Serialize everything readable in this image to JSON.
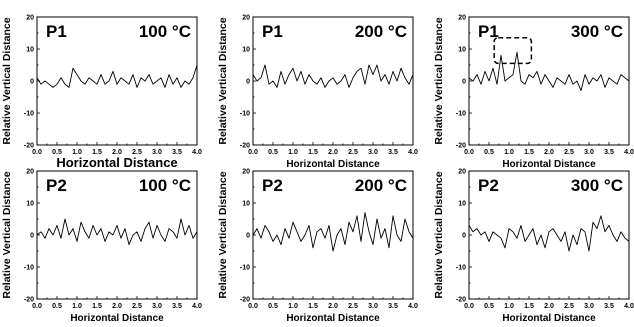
{
  "chart_data": [
    {
      "type": "line",
      "label": "P1",
      "temperature": "100 °C",
      "xlabel": "Horizontal Distance",
      "ylabel": "Relative Vertical Distance",
      "xlim": [
        0.0,
        4.0
      ],
      "ylim": [
        -20,
        20
      ],
      "xticks": [
        "0.0",
        "0.5",
        "1.0",
        "1.5",
        "2.0",
        "2.5",
        "3.0",
        "3.5",
        "4.0"
      ],
      "yticks": [
        "20",
        "10",
        "0",
        "-10",
        "-20"
      ],
      "x": [
        0.0,
        0.1,
        0.2,
        0.3,
        0.4,
        0.5,
        0.6,
        0.7,
        0.8,
        0.9,
        1.0,
        1.1,
        1.2,
        1.3,
        1.4,
        1.5,
        1.6,
        1.7,
        1.8,
        1.9,
        2.0,
        2.1,
        2.2,
        2.3,
        2.4,
        2.5,
        2.6,
        2.7,
        2.8,
        2.9,
        3.0,
        3.1,
        3.2,
        3.3,
        3.4,
        3.5,
        3.6,
        3.7,
        3.8,
        3.9,
        4.0
      ],
      "y": [
        1,
        -1,
        0,
        -1,
        -2,
        -1,
        1,
        -1,
        -2,
        4,
        2,
        0,
        -1,
        1,
        0,
        -1,
        2,
        -1,
        0,
        3,
        -1,
        1,
        0,
        -1,
        2,
        -2,
        1,
        0,
        2,
        -1,
        0,
        1,
        -2,
        2,
        -1,
        1,
        -2,
        0,
        -1,
        1,
        5
      ]
    },
    {
      "type": "line",
      "label": "P1",
      "temperature": "200 °C",
      "xlabel": "Horizontal Distance",
      "ylabel": "Relative Vertical Distance",
      "xlim": [
        0.0,
        4.0
      ],
      "ylim": [
        -20,
        20
      ],
      "xticks": [
        "0.0",
        "0.5",
        "1.0",
        "1.5",
        "2.0",
        "2.5",
        "3.0",
        "3.5",
        "4.0"
      ],
      "yticks": [
        "20",
        "10",
        "0",
        "-10",
        "-20"
      ],
      "x": [
        0.0,
        0.1,
        0.2,
        0.3,
        0.4,
        0.5,
        0.6,
        0.7,
        0.8,
        0.9,
        1.0,
        1.1,
        1.2,
        1.3,
        1.4,
        1.5,
        1.6,
        1.7,
        1.8,
        1.9,
        2.0,
        2.1,
        2.2,
        2.3,
        2.4,
        2.5,
        2.6,
        2.7,
        2.8,
        2.9,
        3.0,
        3.1,
        3.2,
        3.3,
        3.4,
        3.5,
        3.6,
        3.7,
        3.8,
        3.9,
        4.0
      ],
      "y": [
        2,
        0,
        1,
        5,
        -1,
        0,
        -2,
        3,
        -1,
        2,
        4,
        0,
        3,
        -1,
        2,
        0,
        -1,
        1,
        -2,
        0,
        1,
        -1,
        0,
        2,
        -2,
        1,
        3,
        4,
        -1,
        5,
        2,
        5,
        0,
        2,
        -1,
        3,
        0,
        4,
        1,
        -1,
        2
      ]
    },
    {
      "type": "line",
      "label": "P1",
      "temperature": "300 °C",
      "xlabel": "Horizontal Distance",
      "ylabel": "Relative Vertical Distance",
      "xlim": [
        0.0,
        4.0
      ],
      "ylim": [
        -20,
        20
      ],
      "xticks": [
        "0.0",
        "0.5",
        "1.0",
        "1.5",
        "2.0",
        "2.5",
        "3.0",
        "3.5",
        "4.0"
      ],
      "yticks": [
        "20",
        "10",
        "0",
        "-10",
        "-20"
      ],
      "x": [
        0.0,
        0.1,
        0.2,
        0.3,
        0.4,
        0.5,
        0.6,
        0.7,
        0.8,
        0.9,
        1.0,
        1.1,
        1.2,
        1.3,
        1.4,
        1.5,
        1.6,
        1.7,
        1.8,
        1.9,
        2.0,
        2.1,
        2.2,
        2.3,
        2.4,
        2.5,
        2.6,
        2.7,
        2.8,
        2.9,
        3.0,
        3.1,
        3.2,
        3.3,
        3.4,
        3.5,
        3.6,
        3.7,
        3.8,
        3.9,
        4.0
      ],
      "y": [
        1,
        0,
        2,
        -1,
        3,
        0,
        4,
        -1,
        8,
        0,
        1,
        2,
        9,
        0,
        -1,
        2,
        1,
        3,
        -1,
        2,
        0,
        -2,
        1,
        0,
        -1,
        2,
        -1,
        0,
        -3,
        2,
        -1,
        1,
        0,
        2,
        -2,
        1,
        0,
        -1,
        2,
        1,
        0
      ]
    },
    {
      "type": "line",
      "label": "P2",
      "temperature": "100 °C",
      "xlabel": "Horizontal Distance",
      "ylabel": "Relative Vertical Distance",
      "xlim": [
        0.0,
        4.0
      ],
      "ylim": [
        -20,
        20
      ],
      "xticks": [
        "0.0",
        "0.5",
        "1.0",
        "1.5",
        "2.0",
        "2.5",
        "3.0",
        "3.5",
        "4.0"
      ],
      "yticks": [
        "20",
        "10",
        "0",
        "-10",
        "-20"
      ],
      "x": [
        0.0,
        0.1,
        0.2,
        0.3,
        0.4,
        0.5,
        0.6,
        0.7,
        0.8,
        0.9,
        1.0,
        1.1,
        1.2,
        1.3,
        1.4,
        1.5,
        1.6,
        1.7,
        1.8,
        1.9,
        2.0,
        2.1,
        2.2,
        2.3,
        2.4,
        2.5,
        2.6,
        2.7,
        2.8,
        2.9,
        3.0,
        3.1,
        3.2,
        3.3,
        3.4,
        3.5,
        3.6,
        3.7,
        3.8,
        3.9,
        4.0
      ],
      "y": [
        0,
        1,
        -1,
        2,
        0,
        3,
        -1,
        5,
        0,
        2,
        -2,
        4,
        1,
        -1,
        3,
        0,
        2,
        -2,
        1,
        0,
        3,
        -1,
        2,
        -3,
        0,
        1,
        -2,
        2,
        4,
        -1,
        3,
        0,
        -2,
        2,
        1,
        -1,
        5,
        0,
        3,
        -1,
        1
      ]
    },
    {
      "type": "line",
      "label": "P2",
      "temperature": "200 °C",
      "xlabel": "Horizontal Distance",
      "ylabel": "Relative Vertical Distance",
      "xlim": [
        0.0,
        4.0
      ],
      "ylim": [
        -20,
        20
      ],
      "xticks": [
        "0.0",
        "0.5",
        "1.0",
        "1.5",
        "2.0",
        "2.5",
        "3.0",
        "3.5",
        "4.0"
      ],
      "yticks": [
        "20",
        "10",
        "0",
        "-10",
        "-20"
      ],
      "x": [
        0.0,
        0.1,
        0.2,
        0.3,
        0.4,
        0.5,
        0.6,
        0.7,
        0.8,
        0.9,
        1.0,
        1.1,
        1.2,
        1.3,
        1.4,
        1.5,
        1.6,
        1.7,
        1.8,
        1.9,
        2.0,
        2.1,
        2.2,
        2.3,
        2.4,
        2.5,
        2.6,
        2.7,
        2.8,
        2.9,
        3.0,
        3.1,
        3.2,
        3.3,
        3.4,
        3.5,
        3.6,
        3.7,
        3.8,
        3.9,
        4.0
      ],
      "y": [
        0,
        2,
        -1,
        3,
        1,
        -2,
        0,
        -3,
        2,
        -1,
        4,
        1,
        -2,
        0,
        3,
        -4,
        1,
        2,
        -1,
        3,
        -5,
        0,
        2,
        -3,
        4,
        1,
        6,
        -2,
        7,
        1,
        -3,
        5,
        -1,
        2,
        -4,
        6,
        0,
        -2,
        5,
        1,
        -1
      ]
    },
    {
      "type": "line",
      "label": "P2",
      "temperature": "300 °C",
      "xlabel": "Horizontal Distance",
      "ylabel": "Relative Vertical Distance",
      "xlim": [
        0.0,
        4.0
      ],
      "ylim": [
        -20,
        20
      ],
      "xticks": [
        "0.0",
        "0.5",
        "1.0",
        "1.5",
        "2.0",
        "2.5",
        "3.0",
        "3.5",
        "4.0"
      ],
      "yticks": [
        "20",
        "10",
        "0",
        "-10",
        "-20"
      ],
      "x": [
        0.0,
        0.1,
        0.2,
        0.3,
        0.4,
        0.5,
        0.6,
        0.7,
        0.8,
        0.9,
        1.0,
        1.1,
        1.2,
        1.3,
        1.4,
        1.5,
        1.6,
        1.7,
        1.8,
        1.9,
        2.0,
        2.1,
        2.2,
        2.3,
        2.4,
        2.5,
        2.6,
        2.7,
        2.8,
        2.9,
        3.0,
        3.1,
        3.2,
        3.3,
        3.4,
        3.5,
        3.6,
        3.7,
        3.8,
        3.9,
        4.0
      ],
      "y": [
        3,
        1,
        2,
        0,
        1,
        -2,
        1,
        0,
        -1,
        -4,
        2,
        1,
        -1,
        3,
        -2,
        0,
        2,
        -3,
        0,
        -4,
        1,
        2,
        0,
        -2,
        1,
        -5,
        0,
        -3,
        2,
        1,
        -5,
        4,
        2,
        6,
        1,
        3,
        0,
        -2,
        1,
        -1,
        -2
      ]
    }
  ]
}
